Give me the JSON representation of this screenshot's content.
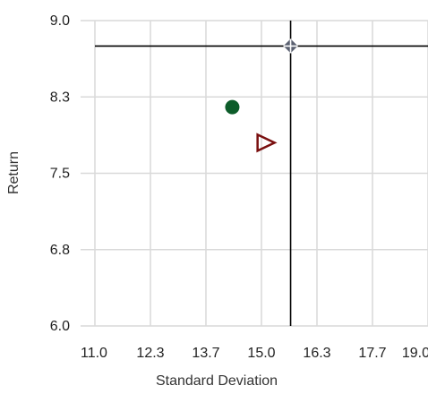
{
  "chart_data": {
    "type": "scatter",
    "xlabel": "Standard Deviation",
    "ylabel": "Return",
    "xlim": [
      11.0,
      19.0
    ],
    "ylim": [
      6.0,
      9.0
    ],
    "x_ticks": [
      "11.0",
      "12.3",
      "13.7",
      "15.0",
      "16.3",
      "17.7",
      "19.0"
    ],
    "y_ticks": [
      "6.0",
      "6.8",
      "7.5",
      "8.3",
      "9.0"
    ],
    "grid": true,
    "crosshair": {
      "x": 15.7,
      "y": 8.75,
      "color": "#000000"
    },
    "series": [
      {
        "marker": "circle",
        "color": "#0d5c2a",
        "x": 14.3,
        "y": 8.15
      },
      {
        "marker": "triangle-right-open",
        "color": "#7a1010",
        "x": 15.1,
        "y": 7.8
      },
      {
        "marker": "diamond-plus",
        "color": "#5a6070",
        "x": 15.7,
        "y": 8.75
      }
    ]
  }
}
